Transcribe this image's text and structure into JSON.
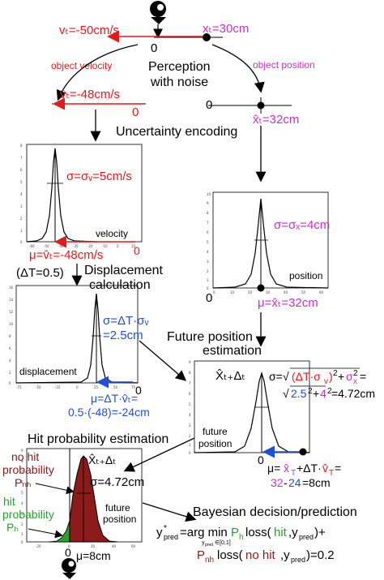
{
  "top": {
    "v_true": "vₜ=-50cm/s",
    "x_true": "xₜ=30cm",
    "origin": "0",
    "perception": [
      "Perception",
      "with noise"
    ],
    "object_velocity": "object velocity",
    "object_position": "object position"
  },
  "velocity_obs": {
    "label": "v̂ₜ=-48cm/s",
    "zero": "0"
  },
  "position_obs": {
    "zero": "0",
    "label": "x̂ₜ=32cm"
  },
  "uncertainty_encoding": "Uncertainty encoding",
  "velocity_panel": {
    "sigma": "σ=σᵥ=5cm/s",
    "caption": "velocity",
    "zero": "0",
    "mu": "μ=v̂ₜ=-48cm/s",
    "yticks": [
      "8",
      "7",
      "6",
      "5",
      "4",
      "3",
      "2",
      "1",
      "0"
    ],
    "xticks": [
      "-60",
      "-50",
      "-40",
      "-30",
      "-20",
      "-10",
      "0",
      "10"
    ]
  },
  "position_panel": {
    "sigma": "σ=σₓ=4cm",
    "caption": "position",
    "zero": "0",
    "mu": "μ=x̂ₜ=32cm",
    "yticks": [
      "10",
      "9",
      "8",
      "7",
      "6",
      "5",
      "4",
      "3",
      "2",
      "1",
      "0"
    ],
    "xticks": [
      "0",
      "10",
      "20",
      "30",
      "40",
      "50",
      "60"
    ]
  },
  "displacement_calc": {
    "dt": "(ΔT=0.5)",
    "title": [
      "Displacement",
      "calculation"
    ]
  },
  "displacement_panel": {
    "sigma_a": "σ=ΔT·σᵥ",
    "sigma_b": "=2.5cm",
    "caption": "displacement",
    "zero": "0",
    "mu_a": "μ=ΔT·v̂ₜ=",
    "mu_b": "0.5·(-48)=-24cm",
    "yticks": [
      "16",
      "14",
      "12",
      "10",
      "8",
      "6",
      "4",
      "2",
      "0"
    ],
    "xticks": [
      "-75",
      "-50",
      "-25",
      "0",
      "25",
      "50",
      "75"
    ]
  },
  "future_estimation": {
    "title": [
      "Future position",
      "estimation"
    ],
    "xhat": "X̂ₜ₊Δₜ",
    "sigma_line1": "σ=√(ΔT·σᵥ)²+σₓ²=",
    "sigma_line2": "√2.5²+4²=4.72cm",
    "caption": [
      "future",
      "position"
    ],
    "zero": "0",
    "mu_line1": "μ=x̂ₜ+ΔT·v̂ₜ=",
    "mu_line2": "32-24=8cm",
    "yticks": [
      "9",
      "8",
      "7",
      "6",
      "5",
      "4",
      "3",
      "2",
      "1",
      "0"
    ]
  },
  "hit_panel": {
    "title": "Hit probability estimation",
    "no_hit": [
      "no hit",
      "probability",
      "Pₙₕ"
    ],
    "hit": [
      "hit",
      "probability",
      "Pₕ"
    ],
    "xhat": "X̂ₜ₊Δₜ",
    "sigma": "σ=4.72cm",
    "caption": [
      "future",
      "position"
    ],
    "zero": "0",
    "mu": "μ=8cm",
    "yticks": [
      "9",
      "8",
      "7",
      "6",
      "5",
      "4",
      "3",
      "2",
      "1",
      "0"
    ],
    "xticks": [
      "-20",
      "0",
      "20",
      "40",
      "60"
    ]
  },
  "bayes": {
    "title": "Bayesian decision/prediction",
    "line1": "y*pred=arg min Pₕ loss(hit,ypred)+",
    "line1_sub": "ypred∈[0,1]",
    "line2": "Pₙₕ loss(no hit,ypred)=0.2"
  },
  "colors": {
    "velocity": "#e31a1c",
    "position": "#c832c8",
    "displacement": "#1f4fd8",
    "no_hit": "#8b1a1a",
    "hit": "#2ca02c"
  }
}
